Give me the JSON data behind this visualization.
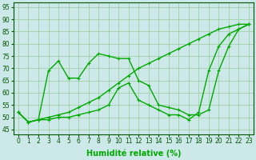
{
  "line_smooth": {
    "x": [
      0,
      1,
      2,
      3,
      4,
      5,
      6,
      7,
      8,
      9,
      10,
      11,
      12,
      13,
      14,
      15,
      16,
      17,
      18,
      19,
      20,
      21,
      22,
      23
    ],
    "y": [
      52,
      48,
      49,
      50,
      51,
      52,
      54,
      56,
      58,
      61,
      64,
      67,
      70,
      72,
      74,
      76,
      78,
      80,
      82,
      84,
      86,
      87,
      88,
      88
    ]
  },
  "line_upper": {
    "x": [
      0,
      1,
      2,
      3,
      4,
      5,
      6,
      7,
      8,
      9,
      10,
      11,
      12,
      13,
      14,
      15,
      16,
      17,
      18,
      19,
      20,
      21,
      22,
      23
    ],
    "y": [
      52,
      48,
      49,
      69,
      73,
      66,
      66,
      72,
      76,
      75,
      74,
      74,
      65,
      63,
      55,
      54,
      53,
      51,
      51,
      53,
      69,
      79,
      86,
      88
    ]
  },
  "line_lower": {
    "x": [
      0,
      1,
      2,
      3,
      4,
      5,
      6,
      7,
      8,
      9,
      10,
      11,
      12,
      13,
      14,
      15,
      16,
      17,
      18,
      19,
      20,
      21,
      22,
      23
    ],
    "y": [
      52,
      48,
      49,
      49,
      50,
      50,
      51,
      52,
      53,
      55,
      62,
      64,
      57,
      55,
      53,
      51,
      51,
      49,
      52,
      69,
      79,
      84,
      86,
      88
    ]
  },
  "background_color": "#cce8e8",
  "grid_color": "#99cc99",
  "xlabel": "Humidité relative (%)",
  "ylim": [
    43,
    97
  ],
  "xlim": [
    -0.5,
    23.5
  ],
  "yticks": [
    45,
    50,
    55,
    60,
    65,
    70,
    75,
    80,
    85,
    90,
    95
  ],
  "xticks": [
    0,
    1,
    2,
    3,
    4,
    5,
    6,
    7,
    8,
    9,
    10,
    11,
    12,
    13,
    14,
    15,
    16,
    17,
    18,
    19,
    20,
    21,
    22,
    23
  ],
  "tick_fontsize": 5.5,
  "xlabel_fontsize": 7,
  "line_color": "#00aa00",
  "marker_size": 2.5,
  "linewidth": 1.0
}
